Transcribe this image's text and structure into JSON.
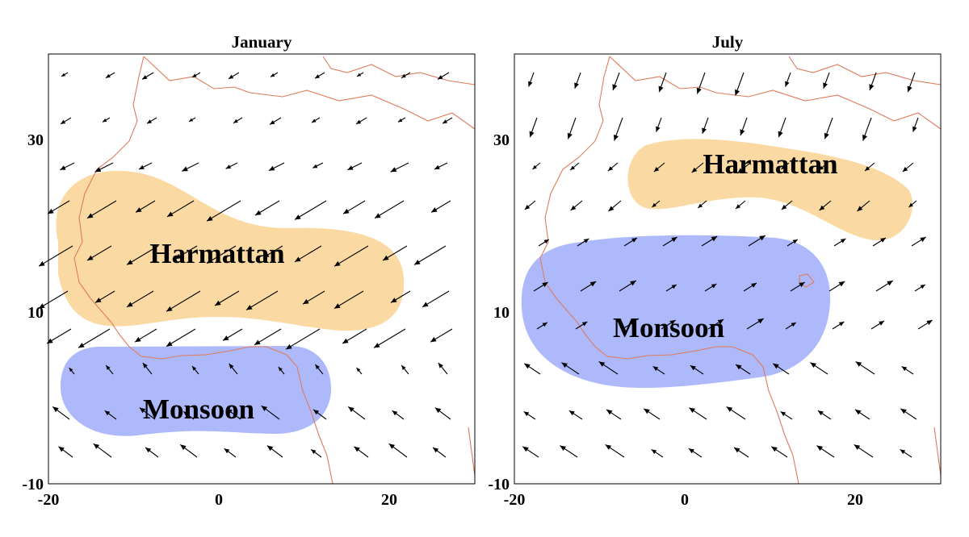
{
  "colors": {
    "harmattan": "#fbd9a2",
    "monsoon": "#adb9fb",
    "coastline": "#e07b5a",
    "arrows": "#000000"
  },
  "panels": [
    {
      "title": "January",
      "regions": [
        {
          "key": "harmattan",
          "label": "Harmattan"
        },
        {
          "key": "monsoon",
          "label": "Monsoon"
        }
      ]
    },
    {
      "title": "July",
      "regions": [
        {
          "key": "harmattan",
          "label": "Harmattan"
        },
        {
          "key": "monsoon",
          "label": "Monsoon"
        }
      ]
    }
  ],
  "axes": {
    "x_ticks": [
      "-20",
      "0",
      "20"
    ],
    "y_ticks": [
      "30",
      "10",
      "-10"
    ]
  }
}
